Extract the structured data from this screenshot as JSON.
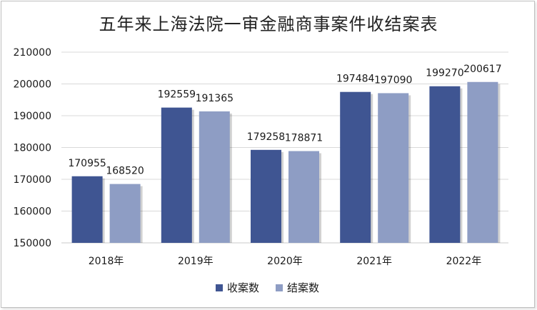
{
  "chart_data": {
    "type": "bar",
    "title": "五年来上海法院一审金融商事案件收结案表",
    "categories": [
      "2018年",
      "2019年",
      "2020年",
      "2021年",
      "2022年"
    ],
    "series": [
      {
        "name": "收案数",
        "values": [
          170955,
          192559,
          179258,
          197484,
          199270
        ],
        "color": "#3f5592"
      },
      {
        "name": "结案数",
        "values": [
          168520,
          191365,
          178871,
          197090,
          200617
        ],
        "color": "#8e9dc4"
      }
    ],
    "yticks": [
      "150000",
      "160000",
      "170000",
      "180000",
      "190000",
      "200000",
      "210000"
    ],
    "ylim": [
      150000,
      210000
    ],
    "grid": true,
    "legend_position": "bottom"
  }
}
